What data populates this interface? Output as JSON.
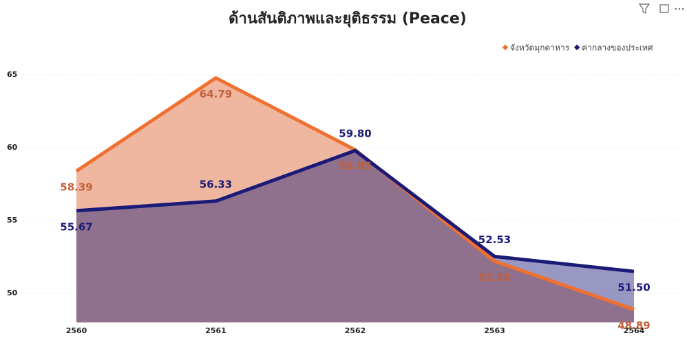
{
  "chart_data": {
    "type": "area",
    "title": "ด้านสันติภาพและยุติธรรม (Peace)",
    "categories": [
      "2560",
      "2561",
      "2562",
      "2563",
      "2564"
    ],
    "series": [
      {
        "name": "จังหวัดมุกดาหาร",
        "color": "#f07030",
        "values": [
          58.39,
          64.79,
          59.85,
          52.2,
          48.89
        ],
        "value_labels": [
          "58.39",
          "64.79",
          "59.85",
          "52.20",
          "48.89"
        ]
      },
      {
        "name": "ค่ากลางของประเทศ",
        "color": "#1a1a78",
        "values": [
          55.67,
          56.33,
          59.8,
          52.53,
          51.5
        ],
        "value_labels": [
          "55.67",
          "56.33",
          "59.80",
          "52.53",
          "51.50"
        ]
      }
    ],
    "ylim": [
      48,
      66
    ],
    "yticks": [
      50,
      55,
      60,
      65
    ],
    "grid": true,
    "legend": "top-right"
  }
}
